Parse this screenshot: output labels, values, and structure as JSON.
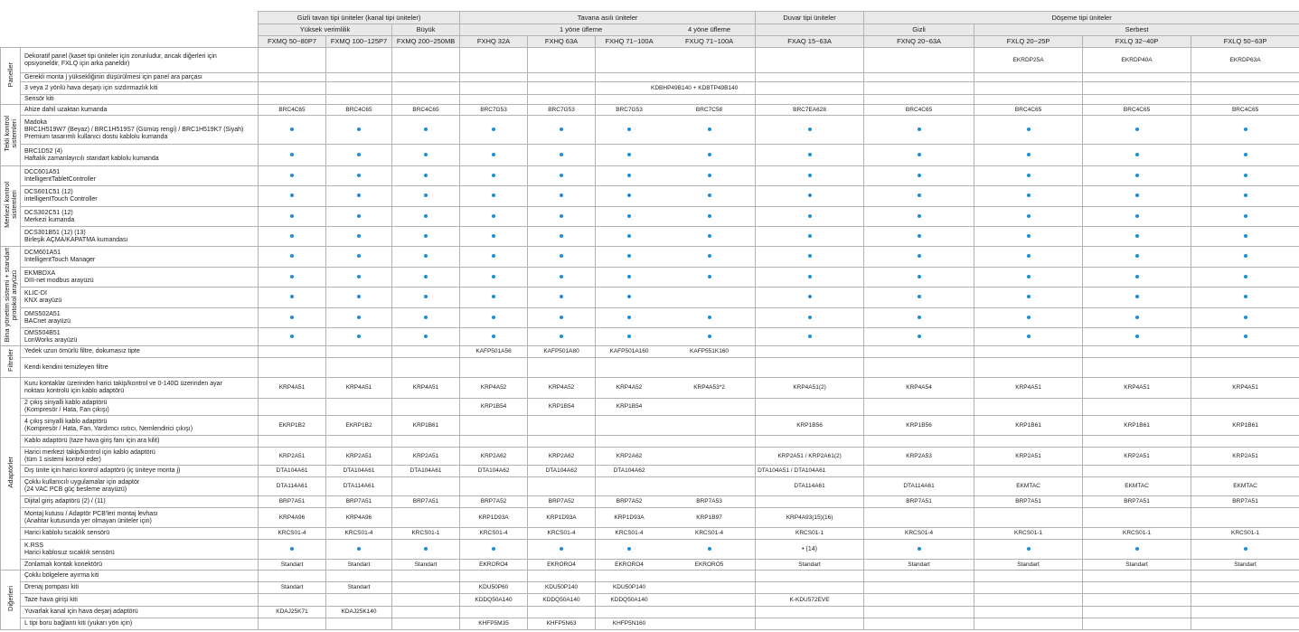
{
  "colors": {
    "dot": "#1a8fd6",
    "header_bg": "#e9e9e9",
    "grid": "#b3b3b3"
  },
  "header": {
    "groups": [
      {
        "label": "Gizli tavan tipi üniteler (kanal tipi üniteler)",
        "span": 3
      },
      {
        "label": "Tavana asılı üniteler",
        "span": 4
      },
      {
        "label": "Duvar tipi üniteler",
        "span": 1
      },
      {
        "label": "Döşeme tipi üniteler",
        "span": 4
      }
    ],
    "subgroups": [
      {
        "label": "Yüksek verimlilik",
        "span": 2
      },
      {
        "label": "Büyük",
        "span": 1
      },
      {
        "label": "1 yöne üfleme",
        "span": 3
      },
      {
        "label": "4 yöne üfleme",
        "span": 1
      },
      {
        "label": "",
        "span": 1
      },
      {
        "label": "Gizli",
        "span": 1
      },
      {
        "label": "Serbest",
        "span": 3
      }
    ],
    "models": [
      "FXMQ 50~80P7",
      "FXMQ 100~125P7",
      "FXMQ 200~250MB",
      "FXHQ 32A",
      "FXHQ 63A",
      "FXHQ 71~100A",
      "FXUQ 71~100A",
      "FXAQ 15~63A",
      "FXNQ 20~63A",
      "FXLQ 20~25P",
      "FXLQ 32~40P",
      "FXLQ 50~63P"
    ]
  },
  "categories": [
    {
      "label": "Paneller",
      "rows": 4
    },
    {
      "label": "Tekli kontrol\nsistemleri",
      "rows": 3
    },
    {
      "label": "Merkezi kontrol\nsistemleri",
      "rows": 4
    },
    {
      "label": "Bina yönetim sistemi + standart\nprotokol arayüzü",
      "rows": 5
    },
    {
      "label": "Filtreler",
      "rows": 2
    },
    {
      "label": "Adaptörler",
      "rows": 12
    },
    {
      "label": "Diğerleri",
      "rows": 5
    }
  ],
  "rows": [
    {
      "label": "Dekoratif panel (kaset tipi üniteler için zorunludur, ancak diğerleri için\nopsiyoneldir, FXLQ için arka paneldir)",
      "cells": [
        "",
        "",
        "",
        "",
        "",
        "",
        "",
        "",
        "",
        "EKRDP25A",
        "EKRDP40A",
        "EKRDP63A"
      ]
    },
    {
      "label": "Gerekli monta j yüksekliğinin düşürülmesi için panel ara parçası",
      "cells": [
        "",
        "",
        "",
        "",
        "",
        "",
        "",
        "",
        "",
        "",
        "",
        ""
      ]
    },
    {
      "label": "3 veya 2 yönlü hava deşarjı için sızdırmazlık kiti",
      "cells": [
        "",
        "",
        "",
        "",
        "",
        "",
        "KDBHP49B140 + KDBTP49B140",
        "",
        "",
        "",
        "",
        ""
      ]
    },
    {
      "label": "Sensör kiti",
      "cells": [
        "",
        "",
        "",
        "",
        "",
        "",
        "",
        "",
        "",
        "",
        "",
        ""
      ]
    },
    {
      "label": "Ahize dahil uzaktan kumanda",
      "cells": [
        "BRC4C65",
        "BRC4C65",
        "BRC4C65",
        "BRC7G53",
        "BRC7G53",
        "BRC7G53",
        "BRC7C58",
        "BRC7EA628",
        "BRC4C65",
        "BRC4C65",
        "BRC4C65",
        "BRC4C65"
      ]
    },
    {
      "label": "Madoka\nBRC1H519W7 (Beyaz) / BRC1H519S7 (Gümüş rengi) / BRC1H519K7 (Siyah)\nPremium tasarımlı kullanıcı dostu kablolu kumanda",
      "cells": [
        "•",
        "•",
        "•",
        "•",
        "•",
        "•",
        "•",
        "•",
        "•",
        "•",
        "•",
        "•"
      ]
    },
    {
      "label": "BRC1D52 (4)\nHaftalık zamanlayıcılı standart kablolu kumanda",
      "cells": [
        "•",
        "•",
        "•",
        "•",
        "•",
        "•",
        "•",
        "•",
        "•",
        "•",
        "•",
        "•"
      ]
    },
    {
      "label": "DCC601A51\nIntelligentTabletController",
      "cells": [
        "•",
        "•",
        "•",
        "•",
        "•",
        "•",
        "•",
        "•",
        "•",
        "•",
        "•",
        "•"
      ]
    },
    {
      "label": "DCS601C51 (12)\nintelligentTouch Controller",
      "cells": [
        "•",
        "•",
        "•",
        "•",
        "•",
        "•",
        "•",
        "•",
        "•",
        "•",
        "•",
        "•"
      ]
    },
    {
      "label": "DCS302C51 (12)\nMerkezi kumanda",
      "cells": [
        "•",
        "•",
        "•",
        "•",
        "•",
        "•",
        "•",
        "•",
        "•",
        "•",
        "•",
        "•"
      ]
    },
    {
      "label": "DCS301B51 (12) (13)\nBirleşik AÇMA/KAPATMA kumandası",
      "cells": [
        "•",
        "•",
        "•",
        "•",
        "•",
        "•",
        "•",
        "•",
        "•",
        "•",
        "•",
        "•"
      ]
    },
    {
      "label": "DCM601A51\nIntelligentTouch Manager",
      "cells": [
        "•",
        "•",
        "•",
        "•",
        "•",
        "•",
        "•",
        "•",
        "•",
        "•",
        "•",
        "•"
      ]
    },
    {
      "label": "EKMBDXA\nDIII-net modbus arayüzü",
      "cells": [
        "•",
        "•",
        "•",
        "•",
        "•",
        "•",
        "•",
        "•",
        "•",
        "•",
        "•",
        "•"
      ]
    },
    {
      "label": "KLIC-DI\nKNX arayüzü",
      "cells": [
        "•",
        "•",
        "•",
        "•",
        "•",
        "•",
        "",
        "•",
        "•",
        "•",
        "•",
        "•"
      ]
    },
    {
      "label": "DMS502A51\nBACnet arayüzü",
      "cells": [
        "•",
        "•",
        "•",
        "•",
        "•",
        "•",
        "•",
        "•",
        "•",
        "•",
        "•",
        "•"
      ]
    },
    {
      "label": "DMS504B51\nLonWorks arayüzü",
      "cells": [
        "•",
        "•",
        "•",
        "•",
        "•",
        "•",
        "•",
        "•",
        "•",
        "•",
        "•",
        "•"
      ]
    },
    {
      "label": "Yedek uzun ömürlü filtre, dokumasız tipte",
      "cells": [
        "",
        "",
        "",
        "KAFP501A56",
        "KAFP501A80",
        "KAFP501A160",
        "KAFP551K160",
        "",
        "",
        "",
        "",
        ""
      ]
    },
    {
      "label": "Kendi kendini temizleyen filtre",
      "cells": [
        "",
        "",
        "",
        "",
        "",
        "",
        "",
        "",
        "",
        "",
        "",
        ""
      ]
    },
    {
      "label": "Kuru kontaklar üzerinden harici takip/kontrol ve 0-140Ω üzerinden ayar\nnoktası kontrolü için kablo adaptörü",
      "cells": [
        "KRP4A51",
        "KRP4A51",
        "KRP4A51",
        "KRP4A52",
        "KRP4A52",
        "KRP4A52",
        "KRP4A53*2",
        "KRP4A51(2)",
        "KRP4A54",
        "KRP4A51",
        "KRP4A51",
        "KRP4A51"
      ]
    },
    {
      "label": "2 çıkış sinyalli kablo adaptörü\n(Kompresör / Hata, Fan çıkışı)",
      "cells": [
        "",
        "",
        "",
        "KRP1B54",
        "KRP1B54",
        "KRP1B54",
        "",
        "",
        "",
        "",
        "",
        ""
      ]
    },
    {
      "label": "4 çıkış sinyalli kablo adaptörü\n(Kompresör / Hata, Fan, Yardımcı ısıtıcı, Nemlendirici çıkışı)",
      "cells": [
        "EKRP1B2",
        "EKRP1B2",
        "KRP1B61",
        "",
        "",
        "",
        "",
        "KRP1B56",
        "KRP1B56",
        "KRP1B61",
        "KRP1B61",
        "KRP1B61"
      ]
    },
    {
      "label": "Kablo adaptörü (taze hava giriş fanı için ara kilit)",
      "cells": [
        "",
        "",
        "",
        "",
        "",
        "",
        "",
        "",
        "",
        "",
        "",
        ""
      ]
    },
    {
      "label": "Harici merkezi takip/kontrol için kablo adaptörü\n(tüm 1 sistemi kontrol eder)",
      "cells": [
        "KRP2A51",
        "KRP2A51",
        "KRP2A51",
        "KRP2A62",
        "KRP2A62",
        "KRP2A62",
        "",
        "KRP2A51 / KRP2A61(2)",
        "KRP2A53",
        "KRP2A51",
        "KRP2A51",
        "KRP2A51"
      ]
    },
    {
      "label": "Dış ünite için harici kontrol adaptörü (iç üniteye monta j)",
      "cells": [
        "DTA104A61",
        "DTA104A61",
        "DTA104A61",
        "DTA104A62",
        "DTA104A62",
        "DTA104A62",
        "",
        "DTA104A51 / DTA104A61",
        "",
        "",
        "",
        ""
      ]
    },
    {
      "label": "Çoklu kullanıcılı uygulamalar için adaptör\n(24 VAC PCB güç besleme arayüzü)",
      "cells": [
        "DTA114A61",
        "DTA114A61",
        "",
        "",
        "",
        "",
        "",
        "DTA114A61",
        "DTA114A61",
        "EKMTAC",
        "EKMTAC",
        "EKMTAC"
      ]
    },
    {
      "label": "Dijital giriş adaptörü (2) / (11)",
      "cells": [
        "BRP7A51",
        "BRP7A51",
        "BRP7A51",
        "BRP7A52",
        "BRP7A52",
        "BRP7A52",
        "BRP7A53",
        "",
        "BRP7A51",
        "BRP7A51",
        "BRP7A51",
        "BRP7A51"
      ]
    },
    {
      "label": "Montaj kutusu / Adaptör PCB'leri montaj levhası\n(Anahtar kutusunda yer olmayan üniteler için)",
      "cells": [
        "KRP4A96",
        "KRP4A96",
        "",
        "KRP1D93A",
        "KRP1D93A",
        "KRP1D93A",
        "KRP1B97",
        "KRP4A93(15)(16)",
        "",
        "",
        "",
        ""
      ]
    },
    {
      "label": "Harici kablolu sıcaklık sensörü",
      "cells": [
        "KRCS01-4",
        "KRCS01-4",
        "KRCS01-1",
        "KRCS01-4",
        "KRCS01-4",
        "KRCS01-4",
        "KRCS01-4",
        "KRCS01-1",
        "KRCS01-4",
        "KRCS01-1",
        "KRCS01-1",
        "KRCS01-1"
      ]
    },
    {
      "label": "K.RSS\nHarici kablosuz sıcaklık sensörü",
      "cells": [
        "•",
        "•",
        "•",
        "•",
        "•",
        "•",
        "•",
        "• (14)",
        "•",
        "•",
        "•",
        "•"
      ]
    },
    {
      "label": "Zonlamalı kontak konektörü",
      "cells": [
        "Standart",
        "Standart",
        "Standart",
        "EKRORO4",
        "EKRORO4",
        "EKRORO4",
        "EKRORO5",
        "Standart",
        "Standart",
        "Standart",
        "Standart",
        "Standart"
      ]
    },
    {
      "label": "Çoklu bölgelere ayırma kiti",
      "cells": [
        "",
        "",
        "",
        "",
        "",
        "",
        "",
        "",
        "",
        "",
        "",
        ""
      ]
    },
    {
      "label": "Drenaj pompası kiti",
      "cells": [
        "Standart",
        "Standart",
        "",
        "KDU50P60",
        "KDU50P140",
        "KDU50P140",
        "",
        "",
        "",
        "",
        "",
        ""
      ]
    },
    {
      "label": "Taze hava girişi kiti",
      "cells": [
        "",
        "",
        "",
        "KDDQ50A140",
        "KDDQ50A140",
        "KDDQ50A140",
        "",
        "K-KDU572EVE",
        "",
        "",
        "",
        ""
      ]
    },
    {
      "label": "Yuvarlak kanal için hava deşarj adaptörü",
      "cells": [
        "KDAJ25K71",
        "KDAJ25K140",
        "",
        "",
        "",
        "",
        "",
        "",
        "",
        "",
        "",
        ""
      ]
    },
    {
      "label": "L tipi boru bağlantı kiti (yukarı yön için)",
      "cells": [
        "",
        "",
        "",
        "KHFP5M35",
        "KHFP5N63",
        "KHFP5N160",
        "",
        "",
        "",
        "",
        "",
        ""
      ]
    }
  ]
}
